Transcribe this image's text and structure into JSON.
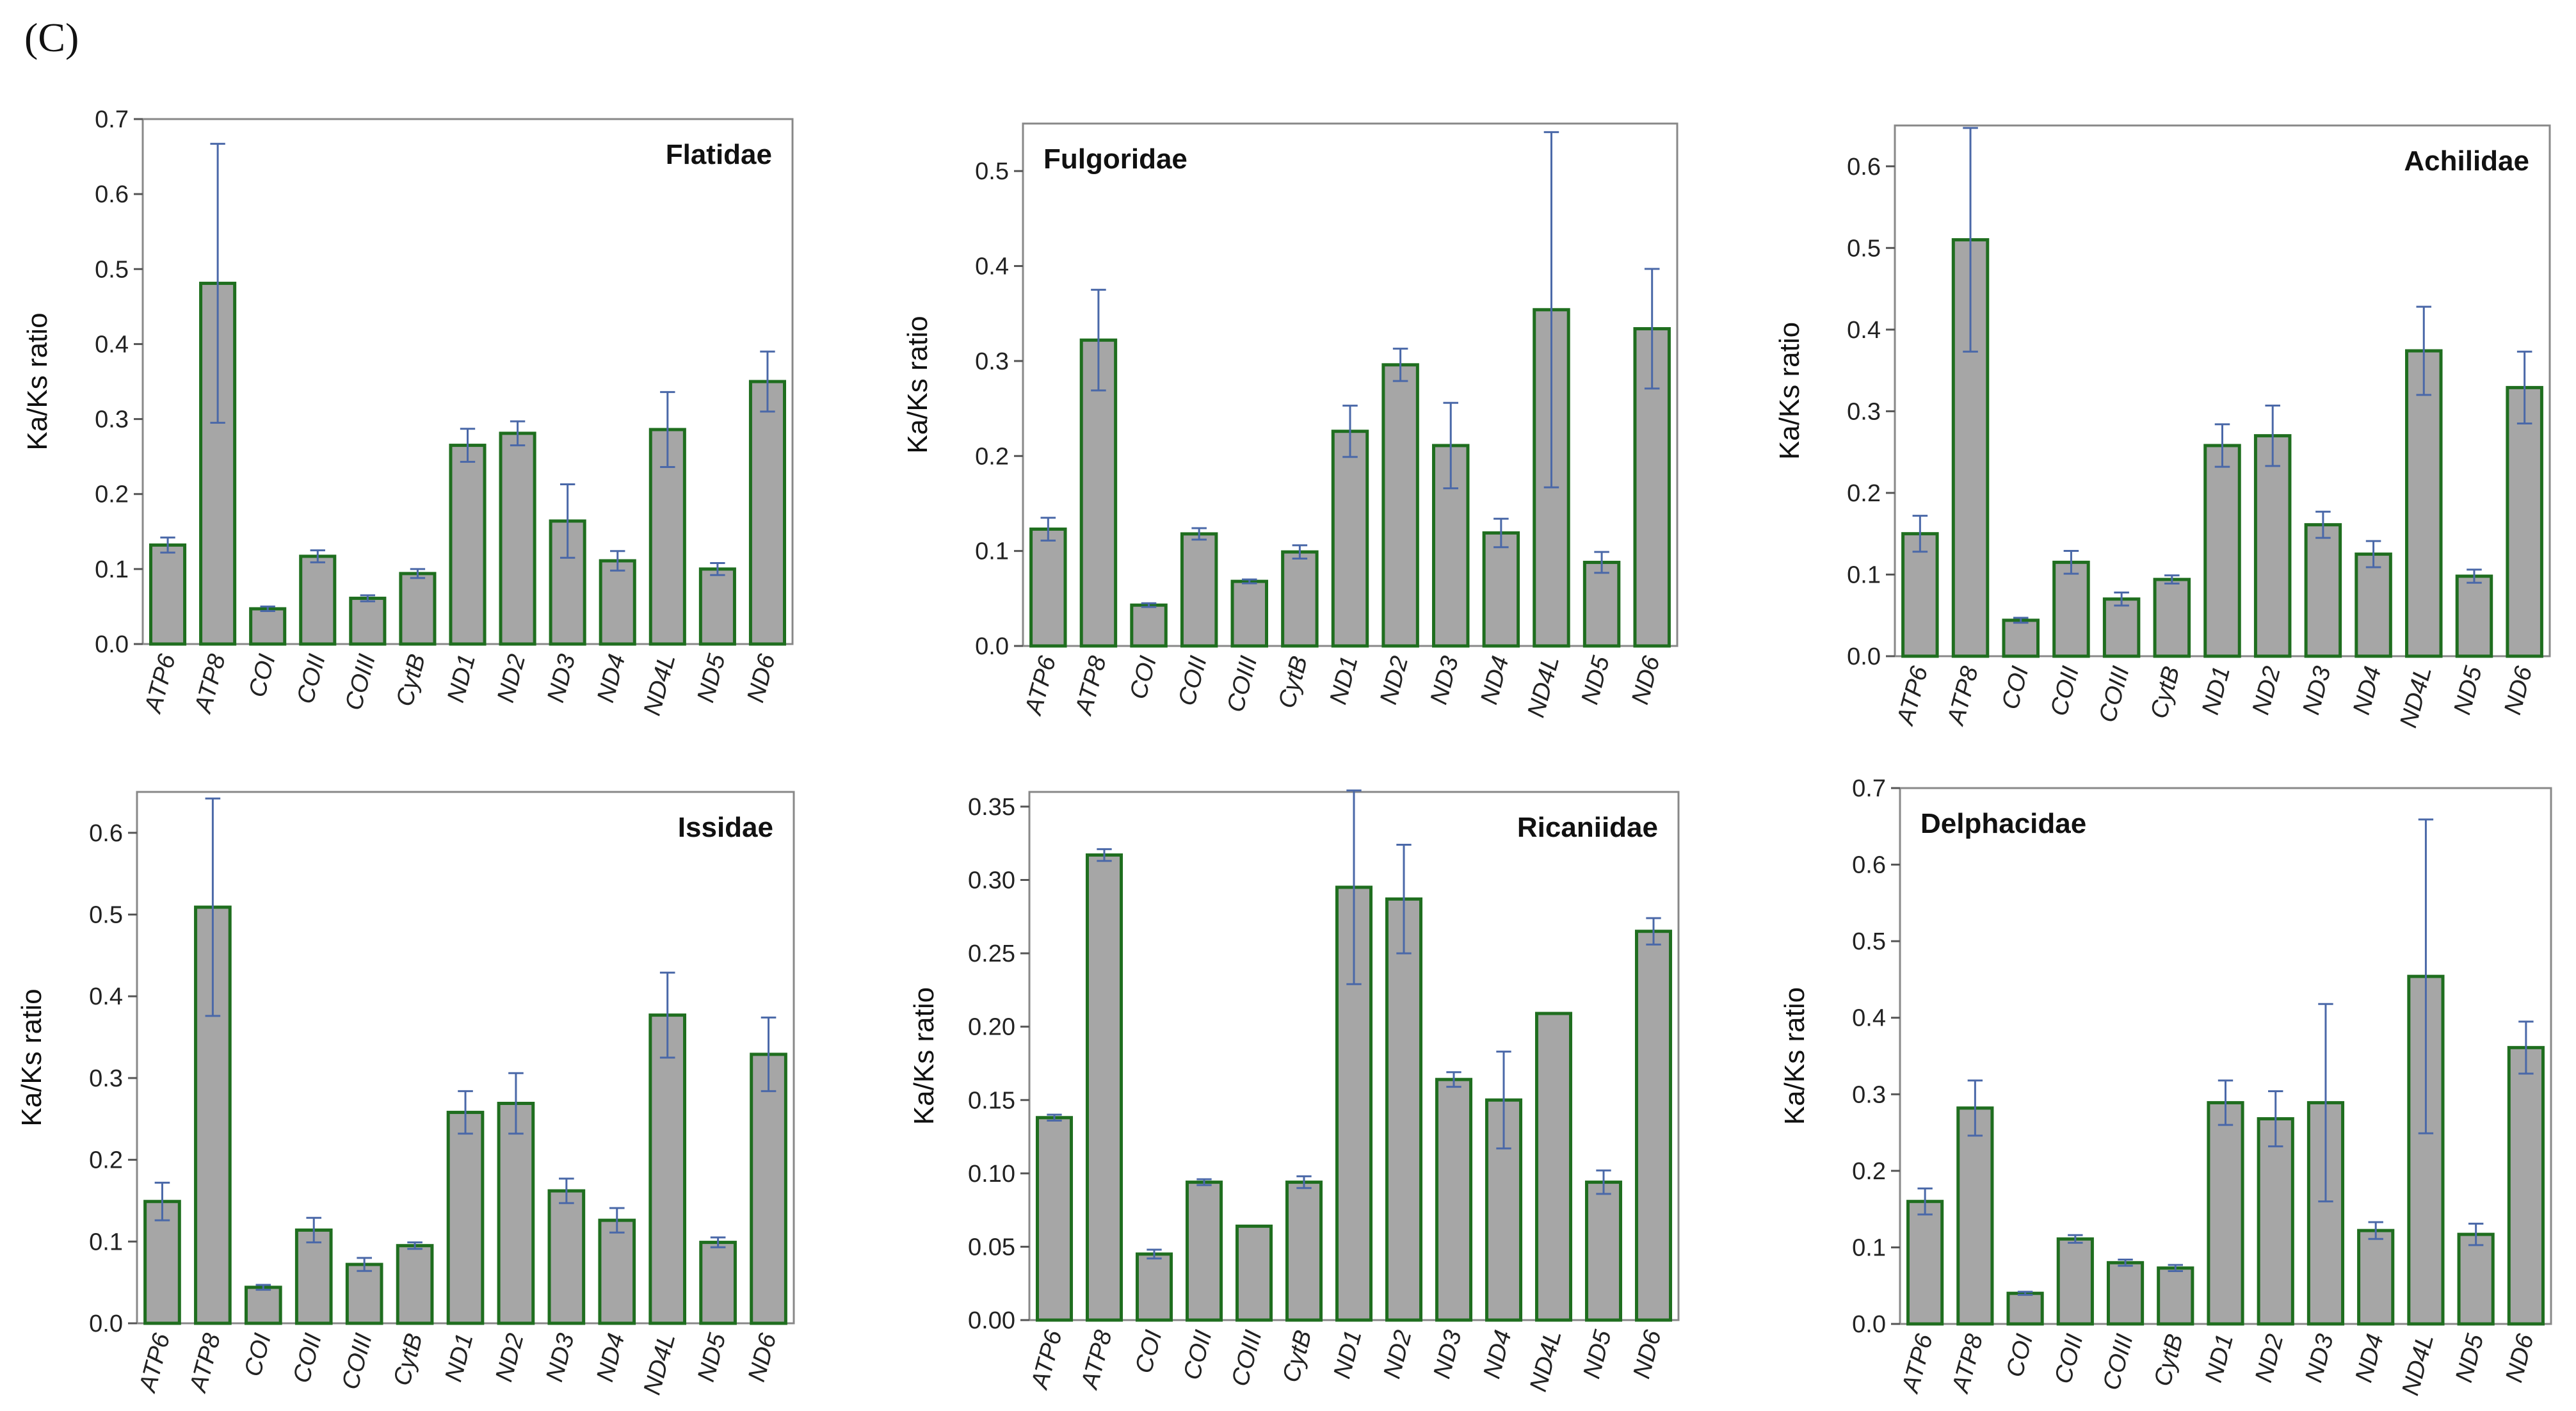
{
  "figure_label": "(C)",
  "colors": {
    "bar_fill": "#a6a6a6",
    "bar_stroke": "#1f6e1f",
    "error_bar": "#4a68a8",
    "frame": "#888888"
  },
  "chart_data": [
    {
      "type": "bar",
      "title": "Flatidae",
      "title_position": "top-right",
      "ylabel": "Ka/Ks ratio",
      "xlabel": "",
      "ylim": [
        0,
        0.7
      ],
      "yticks": [
        0.0,
        0.1,
        0.2,
        0.3,
        0.4,
        0.5,
        0.6,
        0.7
      ],
      "ytick_labels": [
        "0.0",
        "0.1",
        "0.2",
        "0.3",
        "0.4",
        "0.5",
        "0.6",
        "0.7"
      ],
      "categories": [
        "ATP6",
        "ATP8",
        "COI",
        "COII",
        "COIII",
        "CytB",
        "ND1",
        "ND2",
        "ND3",
        "ND4",
        "ND4L",
        "ND5",
        "ND6"
      ],
      "values": [
        0.132,
        0.481,
        0.047,
        0.117,
        0.061,
        0.094,
        0.265,
        0.281,
        0.164,
        0.111,
        0.286,
        0.1,
        0.35
      ],
      "errors": [
        0.01,
        0.186,
        0.003,
        0.008,
        0.004,
        0.006,
        0.022,
        0.016,
        0.049,
        0.013,
        0.05,
        0.008,
        0.04
      ]
    },
    {
      "type": "bar",
      "title": "Fulgoridae",
      "title_position": "top-left",
      "ylabel": "Ka/Ks ratio",
      "xlabel": "",
      "ylim": [
        0,
        0.55
      ],
      "yticks": [
        0.0,
        0.1,
        0.2,
        0.3,
        0.4,
        0.5
      ],
      "ytick_labels": [
        "0.0",
        "0.1",
        "0.2",
        "0.3",
        "0.4",
        "0.5"
      ],
      "categories": [
        "ATP6",
        "ATP8",
        "COI",
        "COII",
        "COIII",
        "CytB",
        "ND1",
        "ND2",
        "ND3",
        "ND4",
        "ND4L",
        "ND5",
        "ND6"
      ],
      "values": [
        0.123,
        0.322,
        0.043,
        0.118,
        0.068,
        0.099,
        0.226,
        0.296,
        0.211,
        0.119,
        0.354,
        0.088,
        0.334
      ],
      "errors": [
        0.012,
        0.053,
        0.002,
        0.006,
        0.002,
        0.007,
        0.027,
        0.017,
        0.045,
        0.015,
        0.187,
        0.011,
        0.063
      ]
    },
    {
      "type": "bar",
      "title": "Achilidae",
      "title_position": "top-right",
      "ylabel": "Ka/Ks ratio",
      "xlabel": "",
      "ylim": [
        0,
        0.65
      ],
      "yticks": [
        0.0,
        0.1,
        0.2,
        0.3,
        0.4,
        0.5,
        0.6
      ],
      "ytick_labels": [
        "0.0",
        "0.1",
        "0.2",
        "0.3",
        "0.4",
        "0.5",
        "0.6"
      ],
      "categories": [
        "ATP6",
        "ATP8",
        "COI",
        "COII",
        "COIII",
        "CytB",
        "ND1",
        "ND2",
        "ND3",
        "ND4",
        "ND4L",
        "ND5",
        "ND6"
      ],
      "values": [
        0.15,
        0.51,
        0.044,
        0.115,
        0.07,
        0.094,
        0.258,
        0.27,
        0.161,
        0.125,
        0.374,
        0.098,
        0.329
      ],
      "errors": [
        0.022,
        0.137,
        0.003,
        0.014,
        0.008,
        0.005,
        0.026,
        0.037,
        0.016,
        0.016,
        0.054,
        0.008,
        0.044
      ]
    },
    {
      "type": "bar",
      "title": "Issidae",
      "title_position": "top-right",
      "ylabel": "Ka/Ks ratio",
      "xlabel": "",
      "ylim": [
        0,
        0.65
      ],
      "yticks": [
        0.0,
        0.1,
        0.2,
        0.3,
        0.4,
        0.5,
        0.6
      ],
      "ytick_labels": [
        "0.0",
        "0.1",
        "0.2",
        "0.3",
        "0.4",
        "0.5",
        "0.6"
      ],
      "categories": [
        "ATP6",
        "ATP8",
        "COI",
        "COII",
        "COIII",
        "CytB",
        "ND1",
        "ND2",
        "ND3",
        "ND4",
        "ND4L",
        "ND5",
        "ND6"
      ],
      "values": [
        0.149,
        0.509,
        0.044,
        0.114,
        0.072,
        0.095,
        0.258,
        0.269,
        0.162,
        0.126,
        0.377,
        0.099,
        0.329
      ],
      "errors": [
        0.023,
        0.133,
        0.003,
        0.015,
        0.008,
        0.004,
        0.026,
        0.037,
        0.015,
        0.015,
        0.052,
        0.006,
        0.045
      ]
    },
    {
      "type": "bar",
      "title": "Ricaniidae",
      "title_position": "top-right",
      "ylabel": "Ka/Ks ratio",
      "xlabel": "",
      "ylim": [
        0,
        0.36
      ],
      "yticks": [
        0.0,
        0.05,
        0.1,
        0.15,
        0.2,
        0.25,
        0.3,
        0.35
      ],
      "ytick_labels": [
        "0.00",
        "0.05",
        "0.10",
        "0.15",
        "0.20",
        "0.25",
        "0.30",
        "0.35"
      ],
      "categories": [
        "ATP6",
        "ATP8",
        "COI",
        "COII",
        "COIII",
        "CytB",
        "ND1",
        "ND2",
        "ND3",
        "ND4",
        "ND4L",
        "ND5",
        "ND6"
      ],
      "values": [
        0.138,
        0.317,
        0.045,
        0.094,
        0.064,
        0.094,
        0.295,
        0.287,
        0.164,
        0.15,
        0.209,
        0.094,
        0.265
      ],
      "errors": [
        0.002,
        0.004,
        0.003,
        0.002,
        0.0,
        0.004,
        0.066,
        0.037,
        0.005,
        0.033,
        0.0,
        0.008,
        0.009
      ]
    },
    {
      "type": "bar",
      "title": "Delphacidae",
      "title_position": "top-left",
      "ylabel": "Ka/Ks ratio",
      "xlabel": "",
      "ylim": [
        0,
        0.7
      ],
      "yticks": [
        0.0,
        0.1,
        0.2,
        0.3,
        0.4,
        0.5,
        0.6,
        0.7
      ],
      "ytick_labels": [
        "0.0",
        "0.1",
        "0.2",
        "0.3",
        "0.4",
        "0.5",
        "0.6",
        "0.7"
      ],
      "categories": [
        "ATP6",
        "ATP8",
        "COI",
        "COII",
        "COIII",
        "CytB",
        "ND1",
        "ND2",
        "ND3",
        "ND4",
        "ND4L",
        "ND5",
        "ND6"
      ],
      "values": [
        0.16,
        0.282,
        0.04,
        0.111,
        0.08,
        0.073,
        0.289,
        0.268,
        0.289,
        0.122,
        0.454,
        0.117,
        0.361
      ],
      "errors": [
        0.017,
        0.036,
        0.002,
        0.005,
        0.004,
        0.004,
        0.029,
        0.036,
        0.129,
        0.011,
        0.205,
        0.014,
        0.034
      ]
    }
  ]
}
